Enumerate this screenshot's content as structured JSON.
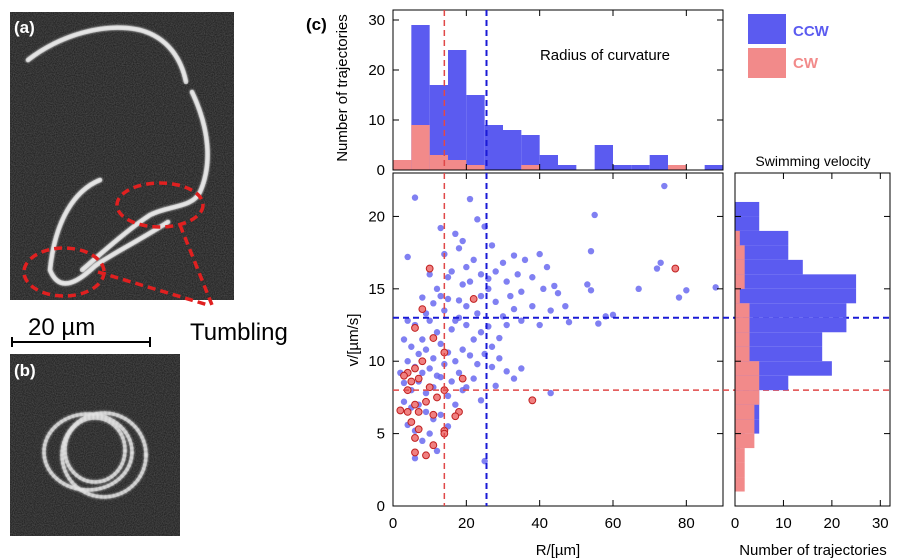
{
  "panels": {
    "a": {
      "label": "(a)"
    },
    "b": {
      "label": "(b)"
    },
    "c": {
      "label": "(c)"
    }
  },
  "scale_bar": {
    "label": "20 µm"
  },
  "annotation": {
    "tumbling": "Tumbling"
  },
  "colors": {
    "ccw": "#5b5bf0",
    "cw": "#f28a8a",
    "ccw_line": "#1a1ad6",
    "cw_line": "#e04848"
  },
  "chart_data": [
    {
      "id": "radius-histogram",
      "type": "bar",
      "title": "Radius of curvature",
      "ylabel": "Number of trajectories",
      "xlim": [
        0,
        90
      ],
      "ylim": [
        0,
        32
      ],
      "yticks": [
        0,
        10,
        20,
        30
      ],
      "bin_width": 5,
      "bin_starts": [
        0,
        5,
        10,
        15,
        20,
        25,
        30,
        35,
        40,
        45,
        50,
        55,
        60,
        65,
        70,
        75,
        80,
        85
      ],
      "series": [
        {
          "name": "CCW",
          "values": [
            2,
            29,
            17,
            24,
            15,
            9,
            8,
            7,
            3,
            1,
            0,
            5,
            1,
            1,
            3,
            1,
            0,
            1
          ]
        },
        {
          "name": "CW",
          "values": [
            2,
            9,
            3,
            2,
            1,
            0,
            0,
            1,
            0,
            0,
            0,
            0,
            0,
            0,
            0,
            1,
            0,
            0
          ]
        }
      ],
      "vlines": {
        "cw": 14,
        "ccw": 25.5
      }
    },
    {
      "id": "scatter",
      "type": "scatter",
      "xlabel": "R/[µm]",
      "ylabel": "v/[µm/s]",
      "xlim": [
        0,
        90
      ],
      "ylim": [
        0,
        23
      ],
      "xticks": [
        0,
        20,
        40,
        60,
        80
      ],
      "yticks": [
        0,
        5,
        10,
        15,
        20
      ],
      "hlines": {
        "ccw": 13,
        "cw": 8
      },
      "vlines": {
        "cw": 14,
        "ccw": 25.5
      },
      "series": [
        {
          "name": "CCW",
          "points": [
            [
              6,
              21.3
            ],
            [
              4,
              17.2
            ],
            [
              14,
              17.4
            ],
            [
              13,
              19.2
            ],
            [
              18,
              17.8
            ],
            [
              17,
              18.8
            ],
            [
              19,
              18.3
            ],
            [
              21,
              21.2
            ],
            [
              23,
              19.8
            ],
            [
              25,
              19.3
            ],
            [
              27,
              18.0
            ],
            [
              16,
              16.2
            ],
            [
              15,
              15.8
            ],
            [
              20,
              16.5
            ],
            [
              22,
              17.0
            ],
            [
              10,
              16.0
            ],
            [
              8,
              14.4
            ],
            [
              12,
              15.0
            ],
            [
              13,
              14.5
            ],
            [
              19,
              15.3
            ],
            [
              18,
              14.2
            ],
            [
              21,
              15.5
            ],
            [
              24,
              14.5
            ],
            [
              26,
              15.0
            ],
            [
              28,
              16.2
            ],
            [
              30,
              16.8
            ],
            [
              31,
              15.5
            ],
            [
              32,
              14.5
            ],
            [
              34,
              16.0
            ],
            [
              35,
              14.8
            ],
            [
              36,
              17.0
            ],
            [
              38,
              15.8
            ],
            [
              40,
              17.4
            ],
            [
              41,
              15.0
            ],
            [
              42,
              16.5
            ],
            [
              44,
              15.2
            ],
            [
              45,
              14.7
            ],
            [
              47,
              13.8
            ],
            [
              53,
              15.3
            ],
            [
              54,
              14.9
            ],
            [
              55,
              20.1
            ],
            [
              58,
              13.1
            ],
            [
              60,
              13.2
            ],
            [
              54,
              17.6
            ],
            [
              72,
              16.4
            ],
            [
              73,
              16.8
            ],
            [
              74,
              22.1
            ],
            [
              80,
              14.9
            ],
            [
              88,
              15.1
            ],
            [
              78,
              14.4
            ],
            [
              67,
              15.0
            ],
            [
              56,
              12.6
            ],
            [
              48,
              12.7
            ],
            [
              43,
              13.5
            ],
            [
              40,
              12.5
            ],
            [
              38,
              13.8
            ],
            [
              35,
              12.8
            ],
            [
              33,
              13.6
            ],
            [
              31,
              12.5
            ],
            [
              29,
              11.6
            ],
            [
              27,
              11.0
            ],
            [
              24,
              12.0
            ],
            [
              22,
              11.5
            ],
            [
              20,
              12.5
            ],
            [
              18,
              13.0
            ],
            [
              16,
              12.2
            ],
            [
              14,
              13.5
            ],
            [
              12,
              12.0
            ],
            [
              10,
              12.8
            ],
            [
              8,
              11.5
            ],
            [
              6,
              12.5
            ],
            [
              5,
              11.0
            ],
            [
              7,
              10.5
            ],
            [
              9,
              10.8
            ],
            [
              11,
              10.2
            ],
            [
              13,
              11.2
            ],
            [
              15,
              10.6
            ],
            [
              17,
              10.0
            ],
            [
              19,
              10.8
            ],
            [
              21,
              10.4
            ],
            [
              23,
              9.8
            ],
            [
              25,
              10.5
            ],
            [
              27,
              9.6
            ],
            [
              29,
              10.2
            ],
            [
              31,
              9.3
            ],
            [
              33,
              8.8
            ],
            [
              35,
              9.5
            ],
            [
              4,
              10.0
            ],
            [
              6,
              9.6
            ],
            [
              8,
              9.2
            ],
            [
              10,
              9.5
            ],
            [
              12,
              9.0
            ],
            [
              14,
              9.8
            ],
            [
              16,
              8.6
            ],
            [
              18,
              9.2
            ],
            [
              20,
              8.2
            ],
            [
              22,
              8.8
            ],
            [
              3,
              8.5
            ],
            [
              5,
              8.0
            ],
            [
              7,
              8.6
            ],
            [
              9,
              7.8
            ],
            [
              11,
              8.2
            ],
            [
              13,
              8.9
            ],
            [
              15,
              7.6
            ],
            [
              17,
              7.0
            ],
            [
              19,
              8.0
            ],
            [
              24,
              7.3
            ],
            [
              28,
              8.3
            ],
            [
              43,
              7.8
            ],
            [
              3,
              7.2
            ],
            [
              5,
              6.8
            ],
            [
              7,
              7.0
            ],
            [
              9,
              6.5
            ],
            [
              11,
              6.0
            ],
            [
              13,
              6.3
            ],
            [
              15,
              5.5
            ],
            [
              4,
              5.6
            ],
            [
              6,
              5.2
            ],
            [
              8,
              4.5
            ],
            [
              10,
              5.0
            ],
            [
              6,
              3.3
            ],
            [
              12,
              3.8
            ],
            [
              25,
              3.1
            ],
            [
              2,
              9.2
            ],
            [
              3,
              11.5
            ],
            [
              4,
              12.8
            ],
            [
              17,
              12.8
            ],
            [
              20,
              13.8
            ],
            [
              23,
              13.3
            ],
            [
              26,
              12.4
            ],
            [
              28,
              14.1
            ],
            [
              30,
              13.1
            ],
            [
              11,
              14.0
            ],
            [
              9,
              13.3
            ],
            [
              15,
              14.3
            ],
            [
              24,
              16.0
            ],
            [
              26,
              15.7
            ],
            [
              33,
              17.3
            ]
          ]
        },
        {
          "name": "CW",
          "points": [
            [
              10,
              16.4
            ],
            [
              77,
              16.4
            ],
            [
              8,
              13.6
            ],
            [
              22,
              14.3
            ],
            [
              6,
              12.3
            ],
            [
              11,
              11.6
            ],
            [
              14,
              10.6
            ],
            [
              4,
              9.2
            ],
            [
              6,
              9.5
            ],
            [
              8,
              10.0
            ],
            [
              3,
              9.0
            ],
            [
              5,
              8.6
            ],
            [
              7,
              8.8
            ],
            [
              10,
              8.2
            ],
            [
              19,
              8.8
            ],
            [
              4,
              8.0
            ],
            [
              9,
              7.2
            ],
            [
              12,
              7.5
            ],
            [
              14,
              8.0
            ],
            [
              6,
              7.0
            ],
            [
              38,
              7.3
            ],
            [
              2,
              6.6
            ],
            [
              4,
              6.5
            ],
            [
              7,
              6.5
            ],
            [
              11,
              6.3
            ],
            [
              18,
              6.5
            ],
            [
              17,
              6.2
            ],
            [
              5,
              5.8
            ],
            [
              7,
              5.3
            ],
            [
              14,
              5.2
            ],
            [
              6,
              4.7
            ],
            [
              11,
              4.2
            ],
            [
              6,
              3.7
            ],
            [
              9,
              3.5
            ],
            [
              14,
              5.0
            ]
          ]
        }
      ]
    },
    {
      "id": "velocity-histogram",
      "type": "bar",
      "orientation": "horizontal",
      "title": "Swimming velocity",
      "xlabel": "Number of trajectories",
      "xlim": [
        0,
        32
      ],
      "xticks": [
        0,
        10,
        20,
        30
      ],
      "ylim": [
        0,
        23
      ],
      "bin_width": 1,
      "bin_starts": [
        1,
        2,
        3,
        4,
        5,
        6,
        7,
        8,
        9,
        10,
        11,
        12,
        13,
        14,
        15,
        16,
        17,
        18,
        19,
        20
      ],
      "series": [
        {
          "name": "CCW",
          "values": [
            0,
            0,
            1,
            2,
            5,
            5,
            5,
            11,
            20,
            18,
            18,
            23,
            23,
            25,
            25,
            14,
            11,
            11,
            5,
            5
          ]
        },
        {
          "name": "CW",
          "values": [
            2,
            2,
            2,
            4,
            4,
            4,
            5,
            5,
            5,
            3,
            3,
            3,
            3,
            1,
            2,
            2,
            2,
            1,
            0,
            0
          ]
        }
      ],
      "hlines": {
        "ccw": 13,
        "cw": 8
      }
    }
  ],
  "legend": {
    "placement": "top-right",
    "items": [
      {
        "name": "CCW",
        "color": "#5b5bf0"
      },
      {
        "name": "CW",
        "color": "#f28a8a"
      }
    ]
  }
}
